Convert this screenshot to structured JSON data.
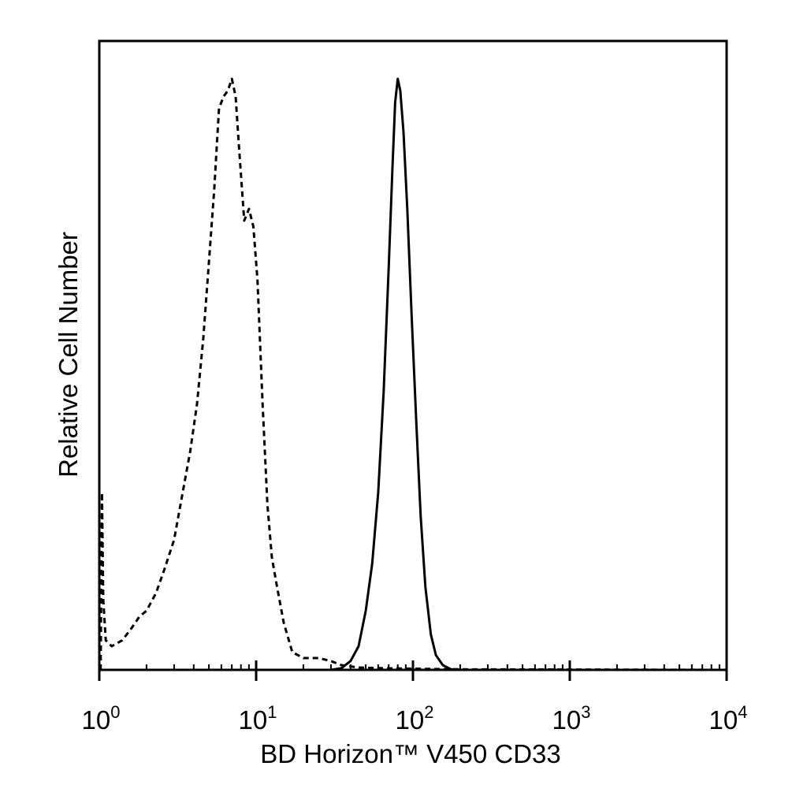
{
  "chart_data": {
    "type": "line",
    "xscale": "log",
    "xlim": [
      1,
      10000
    ],
    "ylim": [
      0,
      100
    ],
    "xlabel": "BD Horizon™ V450 CD33",
    "ylabel": "Relative Cell Number",
    "xticks": [
      {
        "value": 1,
        "base": "10",
        "exp": "0"
      },
      {
        "value": 10,
        "base": "10",
        "exp": "1"
      },
      {
        "value": 100,
        "base": "10",
        "exp": "2"
      },
      {
        "value": 1000,
        "base": "10",
        "exp": "3"
      },
      {
        "value": 10000,
        "base": "10",
        "exp": "4"
      }
    ],
    "grid": false,
    "series": [
      {
        "style": "dashed",
        "color": "#000000",
        "points": [
          [
            1.02,
            0
          ],
          [
            1.04,
            30
          ],
          [
            1.06,
            12
          ],
          [
            1.1,
            5
          ],
          [
            1.2,
            4
          ],
          [
            1.4,
            5
          ],
          [
            1.6,
            7
          ],
          [
            1.8,
            9
          ],
          [
            2.0,
            10
          ],
          [
            2.3,
            13
          ],
          [
            2.6,
            17
          ],
          [
            3.0,
            22
          ],
          [
            3.4,
            30
          ],
          [
            3.8,
            37
          ],
          [
            4.2,
            45
          ],
          [
            4.6,
            56
          ],
          [
            5.0,
            69
          ],
          [
            5.4,
            81
          ],
          [
            5.8,
            95
          ],
          [
            6.2,
            97
          ],
          [
            6.6,
            98
          ],
          [
            7.0,
            100
          ],
          [
            7.4,
            97
          ],
          [
            7.8,
            88
          ],
          [
            8.4,
            76
          ],
          [
            9.0,
            78
          ],
          [
            9.6,
            75
          ],
          [
            10.2,
            66
          ],
          [
            11.0,
            45
          ],
          [
            11.8,
            28
          ],
          [
            12.6,
            19
          ],
          [
            13.6,
            14
          ],
          [
            15,
            8
          ],
          [
            17,
            3
          ],
          [
            20,
            2
          ],
          [
            25,
            2
          ],
          [
            30,
            1.5
          ],
          [
            35,
            0.8
          ],
          [
            45,
            0.4
          ],
          [
            60,
            0.3
          ],
          [
            100,
            0.2
          ],
          [
            200,
            0.1
          ],
          [
            10000,
            0
          ]
        ]
      },
      {
        "style": "solid",
        "color": "#000000",
        "points": [
          [
            1,
            0
          ],
          [
            30,
            0
          ],
          [
            35,
            0.3
          ],
          [
            40,
            1.5
          ],
          [
            45,
            4
          ],
          [
            50,
            10
          ],
          [
            55,
            18
          ],
          [
            60,
            30
          ],
          [
            65,
            47
          ],
          [
            70,
            68
          ],
          [
            74,
            85
          ],
          [
            77,
            96
          ],
          [
            80,
            100
          ],
          [
            83,
            98
          ],
          [
            87,
            91
          ],
          [
            92,
            78
          ],
          [
            98,
            60
          ],
          [
            105,
            42
          ],
          [
            112,
            26
          ],
          [
            120,
            14
          ],
          [
            130,
            6
          ],
          [
            140,
            2.5
          ],
          [
            155,
            0.8
          ],
          [
            175,
            0.1
          ],
          [
            200,
            0
          ],
          [
            10000,
            0
          ]
        ]
      }
    ]
  }
}
